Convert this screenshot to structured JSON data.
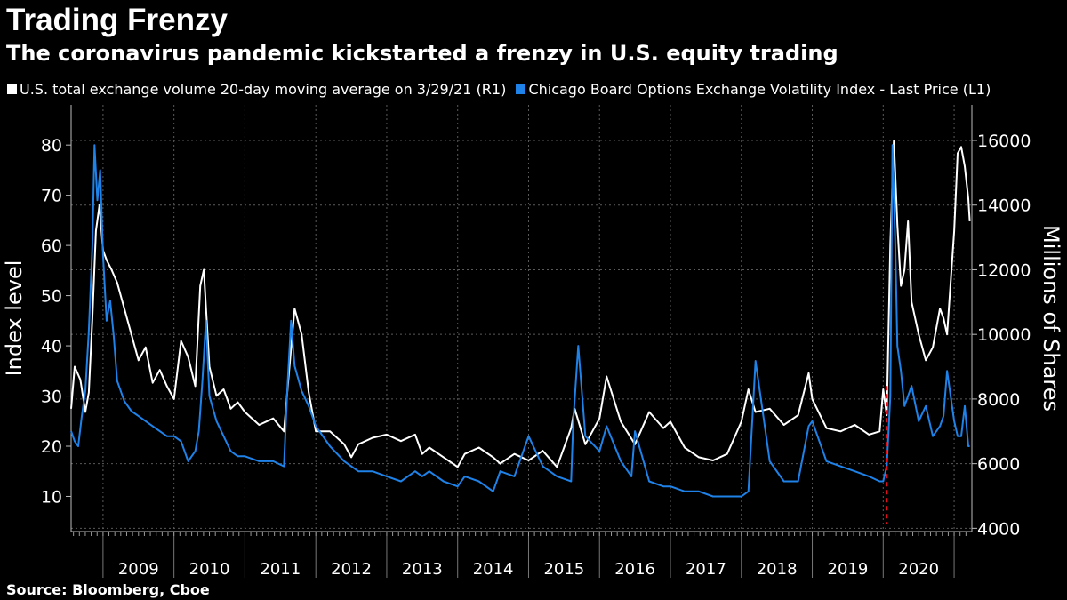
{
  "header": {
    "title": "Trading Frenzy",
    "subtitle": "The coronavirus pandemic kickstarted a frenzy in U.S. equity trading"
  },
  "legend": {
    "items": [
      {
        "label": "U.S. total exchange volume 20-day moving average on 3/29/21 (R1)",
        "color": "#ffffff"
      },
      {
        "label": "Chicago Board Options Exchange Volatility Index - Last Price (L1)",
        "color": "#1f82e8"
      }
    ]
  },
  "footer": {
    "source": "Source: Bloomberg, Cboe"
  },
  "chart_data": {
    "type": "line",
    "title": "Trading Frenzy",
    "x_range": [
      2008.55,
      2021.25
    ],
    "x_tick_labels": [
      "2009",
      "2010",
      "2011",
      "2012",
      "2013",
      "2014",
      "2015",
      "2016",
      "2017",
      "2018",
      "2019",
      "2020"
    ],
    "left_axis": {
      "label": "Index level",
      "range": [
        3,
        88
      ],
      "ticks": [
        10,
        20,
        30,
        40,
        50,
        60,
        70,
        80
      ]
    },
    "right_axis": {
      "label": "Millions of Shares",
      "range": [
        3900,
        17100
      ],
      "ticks": [
        4000,
        6000,
        8000,
        10000,
        12000,
        14000,
        16000
      ]
    },
    "annotation": {
      "type": "vertical-dashed-line",
      "x": 2020.05,
      "color": "#e0101a"
    },
    "series": [
      {
        "name": "U.S. total exchange volume 20-day moving average on 3/29/21",
        "axis": "right",
        "color": "#ffffff",
        "x": [
          2008.55,
          2008.6,
          2008.68,
          2008.75,
          2008.8,
          2008.85,
          2008.9,
          2008.95,
          2009.0,
          2009.05,
          2009.12,
          2009.2,
          2009.3,
          2009.4,
          2009.5,
          2009.6,
          2009.7,
          2009.8,
          2009.9,
          2010.0,
          2010.1,
          2010.2,
          2010.3,
          2010.37,
          2010.42,
          2010.5,
          2010.6,
          2010.7,
          2010.8,
          2010.9,
          2011.0,
          2011.2,
          2011.4,
          2011.55,
          2011.62,
          2011.7,
          2011.8,
          2011.9,
          2012.0,
          2012.2,
          2012.4,
          2012.5,
          2012.6,
          2012.8,
          2013.0,
          2013.2,
          2013.4,
          2013.5,
          2013.6,
          2013.8,
          2014.0,
          2014.1,
          2014.3,
          2014.5,
          2014.6,
          2014.8,
          2015.0,
          2015.2,
          2015.4,
          2015.6,
          2015.65,
          2015.8,
          2016.0,
          2016.1,
          2016.3,
          2016.5,
          2016.7,
          2016.9,
          2017.0,
          2017.2,
          2017.4,
          2017.6,
          2017.8,
          2018.0,
          2018.1,
          2018.2,
          2018.4,
          2018.6,
          2018.8,
          2018.95,
          2019.0,
          2019.2,
          2019.4,
          2019.6,
          2019.8,
          2019.95,
          2020.0,
          2020.05,
          2020.1,
          2020.15,
          2020.2,
          2020.25,
          2020.3,
          2020.35,
          2020.4,
          2020.5,
          2020.6,
          2020.7,
          2020.8,
          2020.85,
          2020.9,
          2021.0,
          2021.05,
          2021.1,
          2021.15,
          2021.2,
          2021.22
        ],
        "values": [
          7700,
          9000,
          8600,
          7600,
          8200,
          10500,
          13200,
          14000,
          12600,
          12300,
          12000,
          11600,
          10800,
          10000,
          9200,
          9600,
          8500,
          8900,
          8400,
          8000,
          9800,
          9300,
          8400,
          11500,
          12000,
          9000,
          8100,
          8300,
          7700,
          7900,
          7600,
          7200,
          7400,
          7000,
          8800,
          10800,
          10000,
          8200,
          7000,
          7000,
          6600,
          6200,
          6600,
          6800,
          6900,
          6700,
          6900,
          6300,
          6500,
          6200,
          5900,
          6300,
          6500,
          6200,
          6000,
          6300,
          6100,
          6400,
          5900,
          7100,
          7700,
          6600,
          7400,
          8700,
          7300,
          6600,
          7600,
          7100,
          7300,
          6500,
          6200,
          6100,
          6300,
          7300,
          8300,
          7600,
          7700,
          7200,
          7500,
          8800,
          8000,
          7100,
          7000,
          7200,
          6900,
          7000,
          8300,
          7500,
          12800,
          16000,
          13400,
          11500,
          12000,
          13500,
          11000,
          10000,
          9200,
          9600,
          10800,
          10500,
          10000,
          13200,
          15600,
          15800,
          15200,
          14200,
          13500
        ]
      },
      {
        "name": "Chicago Board Options Exchange Volatility Index - Last Price",
        "axis": "left",
        "color": "#1f82e8",
        "x": [
          2008.55,
          2008.6,
          2008.65,
          2008.7,
          2008.75,
          2008.8,
          2008.85,
          2008.88,
          2008.92,
          2008.96,
          2009.0,
          2009.05,
          2009.1,
          2009.15,
          2009.2,
          2009.3,
          2009.4,
          2009.5,
          2009.6,
          2009.7,
          2009.8,
          2009.9,
          2010.0,
          2010.1,
          2010.2,
          2010.3,
          2010.35,
          2010.4,
          2010.45,
          2010.5,
          2010.6,
          2010.7,
          2010.8,
          2010.9,
          2011.0,
          2011.2,
          2011.4,
          2011.55,
          2011.6,
          2011.65,
          2011.7,
          2011.8,
          2011.9,
          2012.0,
          2012.2,
          2012.4,
          2012.5,
          2012.6,
          2012.8,
          2013.0,
          2013.2,
          2013.4,
          2013.5,
          2013.6,
          2013.8,
          2014.0,
          2014.1,
          2014.3,
          2014.5,
          2014.6,
          2014.8,
          2014.95,
          2015.0,
          2015.2,
          2015.4,
          2015.6,
          2015.63,
          2015.7,
          2015.8,
          2016.0,
          2016.1,
          2016.3,
          2016.45,
          2016.5,
          2016.7,
          2016.9,
          2017.0,
          2017.2,
          2017.4,
          2017.6,
          2017.8,
          2018.0,
          2018.1,
          2018.2,
          2018.4,
          2018.6,
          2018.8,
          2018.95,
          2019.0,
          2019.2,
          2019.4,
          2019.6,
          2019.8,
          2019.95,
          2020.0,
          2020.05,
          2020.1,
          2020.13,
          2020.17,
          2020.2,
          2020.25,
          2020.3,
          2020.4,
          2020.5,
          2020.6,
          2020.7,
          2020.8,
          2020.85,
          2020.9,
          2021.0,
          2021.05,
          2021.1,
          2021.15,
          2021.2,
          2021.22
        ],
        "values": [
          23,
          21,
          20,
          26,
          31,
          43,
          60,
          80,
          69,
          75,
          58,
          45,
          49,
          42,
          33,
          29,
          27,
          26,
          25,
          24,
          23,
          22,
          22,
          21,
          17,
          19,
          23,
          33,
          45,
          30,
          25,
          22,
          19,
          18,
          18,
          17,
          17,
          16,
          32,
          45,
          36,
          31,
          28,
          24,
          20,
          17,
          16,
          15,
          15,
          14,
          13,
          15,
          14,
          15,
          13,
          12,
          14,
          13,
          11,
          15,
          14,
          20,
          22,
          16,
          14,
          13,
          25,
          40,
          22,
          19,
          24,
          17,
          14,
          23,
          13,
          12,
          12,
          11,
          11,
          10,
          10,
          10,
          11,
          37,
          17,
          13,
          13,
          24,
          25,
          17,
          16,
          15,
          14,
          13,
          13,
          16,
          30,
          80,
          60,
          40,
          35,
          28,
          32,
          25,
          28,
          22,
          24,
          26,
          35,
          25,
          22,
          22,
          28,
          20,
          20
        ]
      }
    ]
  }
}
